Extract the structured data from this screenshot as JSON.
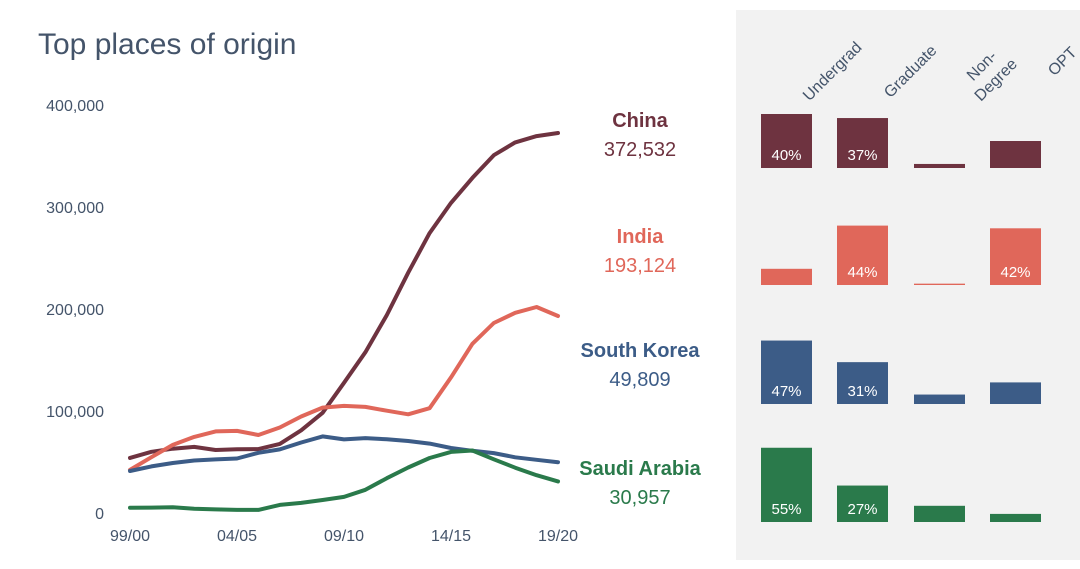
{
  "title": "Top places of origin",
  "chart_data": {
    "type": "line",
    "title": "Top places of origin",
    "x": [
      "99/00",
      "00/01",
      "01/02",
      "02/03",
      "03/04",
      "04/05",
      "05/06",
      "06/07",
      "07/08",
      "08/09",
      "09/10",
      "10/11",
      "11/12",
      "12/13",
      "13/14",
      "14/15",
      "15/16",
      "16/17",
      "17/18",
      "18/19",
      "19/20"
    ],
    "xticks": [
      "99/00",
      "04/05",
      "09/10",
      "14/15",
      "19/20"
    ],
    "ylim": [
      0,
      400000
    ],
    "yticks": [
      0,
      100000,
      200000,
      300000,
      400000
    ],
    "ytick_labels": [
      "0",
      "100,000",
      "200,000",
      "300,000",
      "400,000"
    ],
    "series": [
      {
        "name": "China",
        "color": "#6e3340",
        "values": [
          54000,
          60000,
          63000,
          64800,
          61800,
          62500,
          62600,
          67700,
          81100,
          98200,
          127600,
          157600,
          194000,
          235600,
          274400,
          304000,
          328500,
          350800,
          363300,
          369500,
          372532
        ]
      },
      {
        "name": "India",
        "color": "#e0675a",
        "values": [
          42300,
          54700,
          66800,
          74600,
          80000,
          80500,
          76500,
          83800,
          94600,
          103300,
          105000,
          104000,
          100300,
          96800,
          102700,
          132900,
          165900,
          186300,
          196300,
          202000,
          193124
        ]
      },
      {
        "name": "South Korea",
        "color": "#3c5c87",
        "values": [
          41200,
          45700,
          49000,
          51500,
          52500,
          53400,
          59000,
          62400,
          69100,
          75100,
          72200,
          73400,
          72300,
          70600,
          68000,
          63700,
          61000,
          58700,
          54600,
          52200,
          49809
        ]
      },
      {
        "name": "Saudi Arabia",
        "color": "#2a7a4b",
        "values": [
          5200,
          5300,
          5600,
          4200,
          3500,
          3000,
          3000,
          7900,
          9900,
          12700,
          15800,
          22700,
          34100,
          44600,
          53900,
          59900,
          61300,
          52600,
          44400,
          37100,
          30957
        ]
      }
    ]
  },
  "countries": [
    {
      "name": "China",
      "total": "372,532",
      "color": "#6e3340"
    },
    {
      "name": "India",
      "total": "193,124",
      "color": "#e0675a"
    },
    {
      "name": "South Korea",
      "total": "49,809",
      "color": "#3c5c87"
    },
    {
      "name": "Saudi Arabia",
      "total": "30,957",
      "color": "#2a7a4b"
    }
  ],
  "breakdown": {
    "categories": [
      "Undergrad",
      "Graduate",
      "Non-Degree",
      "OPT"
    ],
    "category_labels": [
      [
        "Undergrad"
      ],
      [
        "Graduate"
      ],
      [
        "Non-",
        "Degree"
      ],
      [
        "OPT"
      ]
    ],
    "rows": [
      {
        "country": "China",
        "color": "#6e3340",
        "values": [
          40,
          37,
          3,
          20
        ],
        "labels": [
          "40%",
          "37%",
          "",
          ""
        ]
      },
      {
        "country": "India",
        "color": "#e0675a",
        "values": [
          12,
          44,
          1,
          42
        ],
        "labels": [
          "",
          "44%",
          "",
          "42%"
        ]
      },
      {
        "country": "South Korea",
        "color": "#3c5c87",
        "values": [
          47,
          31,
          7,
          16
        ],
        "labels": [
          "47%",
          "31%",
          "",
          ""
        ]
      },
      {
        "country": "Saudi Arabia",
        "color": "#2a7a4b",
        "values": [
          55,
          27,
          12,
          6
        ],
        "labels": [
          "55%",
          "27%",
          "",
          ""
        ]
      }
    ]
  }
}
